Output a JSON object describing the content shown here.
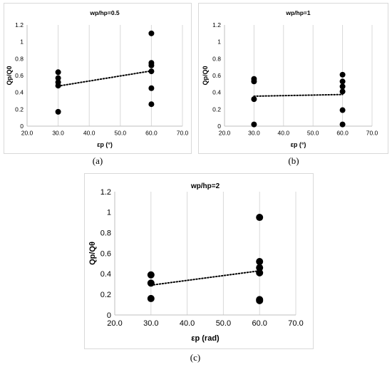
{
  "chart_data": [
    {
      "type": "scatter",
      "title": "wp/hp=0.5",
      "xlabel": "εp (°)",
      "ylabel": "Qp/Q0",
      "caption": "(a)",
      "xlim": [
        20,
        70
      ],
      "ylim": [
        0,
        1.2
      ],
      "xticks": [
        "20.0",
        "30.0",
        "40.0",
        "50.0",
        "60.0",
        "70.0"
      ],
      "yticks": [
        "0",
        "0.2",
        "0.4",
        "0.6",
        "0.8",
        "1",
        "1.2"
      ],
      "grid": "vertical",
      "points": [
        {
          "x": 30,
          "y": 0.17
        },
        {
          "x": 30,
          "y": 0.48
        },
        {
          "x": 30,
          "y": 0.52
        },
        {
          "x": 30,
          "y": 0.57
        },
        {
          "x": 30,
          "y": 0.64
        },
        {
          "x": 60,
          "y": 0.26
        },
        {
          "x": 60,
          "y": 0.45
        },
        {
          "x": 60,
          "y": 0.65
        },
        {
          "x": 60,
          "y": 0.72
        },
        {
          "x": 60,
          "y": 0.75
        },
        {
          "x": 60,
          "y": 1.1
        }
      ],
      "trendline": {
        "x": [
          30,
          60
        ],
        "y": [
          0.475,
          0.655
        ]
      }
    },
    {
      "type": "scatter",
      "title": "wp/hp=1",
      "xlabel": "εp (°)",
      "ylabel": "Qp/Q0",
      "caption": "(b)",
      "xlim": [
        20,
        70
      ],
      "ylim": [
        0,
        1.2
      ],
      "xticks": [
        "20.0",
        "30.0",
        "40.0",
        "50.0",
        "60.0",
        "70.0"
      ],
      "yticks": [
        "0",
        "0.2",
        "0.4",
        "0.6",
        "0.8",
        "1",
        "1.2"
      ],
      "grid": "vertical",
      "points": [
        {
          "x": 30,
          "y": 0.02
        },
        {
          "x": 30,
          "y": 0.32
        },
        {
          "x": 30,
          "y": 0.53
        },
        {
          "x": 30,
          "y": 0.56
        },
        {
          "x": 60,
          "y": 0.02
        },
        {
          "x": 60,
          "y": 0.19
        },
        {
          "x": 60,
          "y": 0.41
        },
        {
          "x": 60,
          "y": 0.47
        },
        {
          "x": 60,
          "y": 0.53
        },
        {
          "x": 60,
          "y": 0.61
        }
      ],
      "trendline": {
        "x": [
          30,
          60
        ],
        "y": [
          0.355,
          0.375
        ]
      }
    },
    {
      "type": "scatter",
      "title": "wp/hp=2",
      "xlabel": "εp (rad)",
      "ylabel": "Qp/Qθ",
      "caption": "(c)",
      "xlim": [
        20,
        70
      ],
      "ylim": [
        0,
        1.2
      ],
      "xticks": [
        "20.0",
        "30.0",
        "40.0",
        "50.0",
        "60.0",
        "70.0"
      ],
      "yticks": [
        "0",
        "0.2",
        "0.4",
        "0.6",
        "0.8",
        "1",
        "1.2"
      ],
      "grid": "vertical",
      "points": [
        {
          "x": 30,
          "y": 0.16
        },
        {
          "x": 30,
          "y": 0.31
        },
        {
          "x": 30,
          "y": 0.39
        },
        {
          "x": 60,
          "y": 0.14
        },
        {
          "x": 60,
          "y": 0.15
        },
        {
          "x": 60,
          "y": 0.41
        },
        {
          "x": 60,
          "y": 0.46
        },
        {
          "x": 60,
          "y": 0.52
        },
        {
          "x": 60,
          "y": 0.95
        }
      ],
      "trendline": {
        "x": [
          30,
          60
        ],
        "y": [
          0.29,
          0.43
        ]
      }
    }
  ]
}
